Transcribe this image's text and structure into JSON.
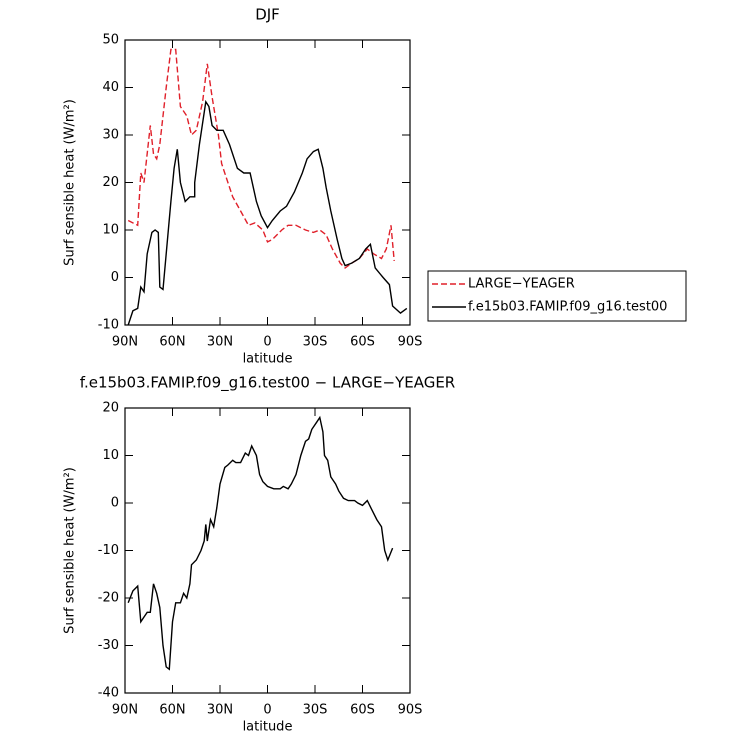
{
  "chart_data": [
    {
      "type": "line",
      "title": "DJF",
      "x_label": "latitude",
      "y_label": "Surf sensible heat (W/m²)",
      "xlim": [
        90,
        -90
      ],
      "xticks": [
        {
          "value": 90,
          "label": "90N"
        },
        {
          "value": 60,
          "label": "60N"
        },
        {
          "value": 30,
          "label": "30N"
        },
        0,
        {
          "value": -30,
          "label": "30S"
        },
        {
          "value": -60,
          "label": "60S"
        },
        {
          "value": -90,
          "label": "90S"
        }
      ],
      "ylim": [
        -10,
        50
      ],
      "yticks": [
        -10,
        0,
        10,
        20,
        30,
        40,
        50
      ],
      "legend": "right",
      "series": [
        {
          "name": "LARGE−YEAGER",
          "color": "#e0202a",
          "dashed": true,
          "x": [
            88,
            82,
            80,
            78,
            74,
            72,
            70,
            68,
            64,
            61,
            58,
            55,
            51,
            48,
            45,
            41,
            38,
            35,
            31,
            29,
            25,
            22,
            17,
            12,
            8,
            3,
            0,
            -3,
            -9,
            -13,
            -18,
            -24,
            -29,
            -33,
            -37,
            -41,
            -46,
            -49,
            -53,
            -58,
            -63,
            -67,
            -72,
            -75,
            -78,
            -80
          ],
          "values": [
            12,
            11,
            22,
            20,
            32,
            26,
            25,
            28,
            40,
            48,
            48,
            36,
            34,
            30,
            31,
            37,
            45,
            38,
            30,
            24,
            20,
            17,
            14,
            11,
            11.5,
            10,
            7.5,
            8,
            10,
            11,
            11,
            10,
            9.5,
            10,
            9,
            6,
            3,
            2,
            3,
            4,
            6,
            5,
            4,
            6,
            11,
            3.5
          ]
        },
        {
          "name": "f.e15b03.FAMIP.f09_g16.test00",
          "color": "#000000",
          "dashed": false,
          "x": [
            88,
            85,
            82,
            80,
            78,
            76,
            73,
            71,
            69,
            68,
            66,
            64,
            61,
            59,
            57,
            55,
            52,
            49,
            46,
            46,
            43,
            39,
            37,
            35,
            32,
            28,
            24,
            19,
            15,
            11,
            7,
            4,
            0,
            -3,
            -8,
            -12,
            -17,
            -22,
            -25,
            -29,
            -32,
            -35,
            -37,
            -40,
            -44,
            -47,
            -49,
            -53,
            -58,
            -62,
            -65,
            -68,
            -73,
            -77,
            -79,
            -84,
            -88
          ],
          "values": [
            -10,
            -7,
            -6.5,
            -2,
            -3,
            5,
            9.5,
            10,
            9.5,
            -2,
            -2.5,
            5,
            16,
            23,
            27,
            20,
            16,
            17,
            17,
            20,
            28,
            37,
            36,
            32,
            31,
            31,
            28,
            23,
            22,
            22,
            16,
            13,
            10.5,
            12,
            14,
            15,
            18,
            22,
            25,
            26.5,
            27,
            23,
            19,
            14,
            8,
            4,
            2.5,
            3,
            4,
            6,
            7,
            2,
            0,
            -1.5,
            -6,
            -7.5,
            -6.5
          ]
        }
      ]
    },
    {
      "type": "line",
      "title": "f.e15b03.FAMIP.f09_g16.test00 − LARGE−YEAGER",
      "x_label": "latitude",
      "y_label": "Surf sensible heat (W/m²)",
      "xlim": [
        90,
        -90
      ],
      "xticks": [
        {
          "value": 90,
          "label": "90N"
        },
        {
          "value": 60,
          "label": "60N"
        },
        {
          "value": 30,
          "label": "30N"
        },
        0,
        {
          "value": -30,
          "label": "30S"
        },
        {
          "value": -60,
          "label": "60S"
        },
        {
          "value": -90,
          "label": "90S"
        }
      ],
      "ylim": [
        -40,
        20
      ],
      "yticks": [
        -40,
        -30,
        -20,
        -10,
        0,
        10,
        20
      ],
      "series": [
        {
          "color": "#000000",
          "dashed": false,
          "x": [
            88,
            85,
            82,
            80,
            78,
            76,
            74,
            72,
            70,
            68,
            66,
            64,
            62,
            60,
            58,
            55,
            53,
            51,
            49,
            48,
            45,
            42,
            40,
            39,
            38,
            36,
            34,
            32,
            30,
            27,
            25,
            22,
            20,
            17,
            14,
            12,
            10,
            7,
            5,
            3,
            0,
            -4,
            -8,
            -10,
            -13,
            -15,
            -18,
            -21,
            -24,
            -26,
            -28,
            -31,
            -33,
            -35,
            -36,
            -38,
            -40,
            -43,
            -45,
            -48,
            -51,
            -55,
            -57,
            -60,
            -63,
            -66,
            -69,
            -72,
            -74,
            -76,
            -79
          ],
          "values": [
            -21,
            -18.5,
            -17.5,
            -25,
            -24,
            -23,
            -23,
            -17,
            -19,
            -22,
            -30,
            -34.5,
            -35,
            -25,
            -21,
            -21,
            -19,
            -20,
            -17,
            -13,
            -12,
            -10,
            -8,
            -4.5,
            -8,
            -3.5,
            -5,
            -1,
            4,
            7.5,
            8,
            9,
            8.5,
            8.5,
            10.5,
            10,
            12,
            10,
            6,
            4.5,
            3.5,
            3,
            3,
            3.5,
            3,
            4,
            6,
            10,
            13,
            13.5,
            15.5,
            17,
            18,
            15,
            10,
            9,
            5.5,
            4,
            2.5,
            1,
            0.5,
            0.5,
            0,
            -0.5,
            0.5,
            -1.5,
            -3.5,
            -5,
            -10,
            -12,
            -9.5
          ]
        }
      ]
    }
  ]
}
